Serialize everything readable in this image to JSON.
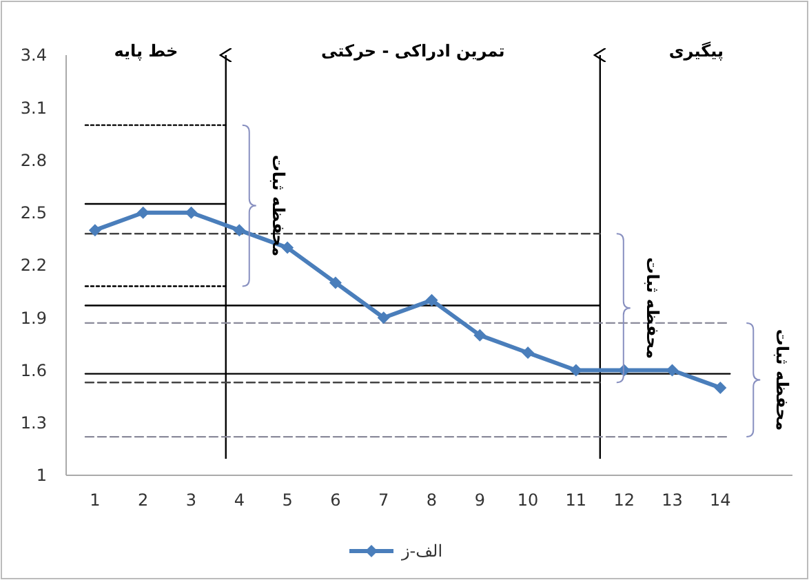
{
  "chart_data": {
    "type": "line",
    "x": [
      1,
      2,
      3,
      4,
      5,
      6,
      7,
      8,
      9,
      10,
      11,
      12,
      13,
      14
    ],
    "xlim": [
      0.4,
      15.5
    ],
    "xticks": [
      1,
      2,
      3,
      4,
      5,
      6,
      7,
      8,
      9,
      10,
      11,
      12,
      13,
      14
    ],
    "ylim": [
      1,
      3.4
    ],
    "yticks": [
      1,
      1.3,
      1.6,
      1.9,
      2.2,
      2.5,
      2.8,
      3.1,
      3.4
    ],
    "grid": false,
    "legend": "bottom",
    "marker": "diamond",
    "series": [
      {
        "name": "الف-ز",
        "color": "#4a7ebb",
        "values": [
          2.4,
          2.5,
          2.5,
          2.4,
          2.3,
          2.1,
          1.9,
          2.0,
          1.8,
          1.7,
          1.6,
          1.6,
          1.6,
          1.5
        ]
      },
      {
        "type": "line",
        "x": [
          0.8,
          3.72
        ],
        "values": [
          3.0,
          3.0
        ],
        "color": "#000000",
        "line_style": "dotted",
        "marker": "none"
      },
      {
        "type": "line",
        "x": [
          0.8,
          3.72
        ],
        "values": [
          2.55,
          2.55
        ],
        "color": "#000000",
        "line_style": "solid",
        "marker": "none"
      },
      {
        "type": "line",
        "x": [
          0.8,
          3.72
        ],
        "values": [
          2.08,
          2.08
        ],
        "color": "#000000",
        "line_style": "dotted",
        "marker": "none"
      },
      {
        "type": "line",
        "x": [
          0.8,
          11.5
        ],
        "values": [
          2.38,
          2.38
        ],
        "color": "#444444",
        "line_style": "dashed",
        "marker": "none"
      },
      {
        "type": "line",
        "x": [
          0.8,
          11.5
        ],
        "values": [
          1.97,
          1.97
        ],
        "color": "#000000",
        "line_style": "solid",
        "marker": "none"
      },
      {
        "type": "line",
        "x": [
          0.8,
          14.2
        ],
        "values": [
          1.87,
          1.87
        ],
        "color": "#8a8a9a",
        "line_style": "dashed",
        "marker": "none"
      },
      {
        "type": "line",
        "x": [
          0.8,
          14.2
        ],
        "values": [
          1.58,
          1.58
        ],
        "color": "#000000",
        "line_style": "solid",
        "marker": "none"
      },
      {
        "type": "line",
        "x": [
          0.8,
          11.5
        ],
        "values": [
          1.53,
          1.53
        ],
        "color": "#444444",
        "line_style": "dashed",
        "marker": "none"
      },
      {
        "type": "line",
        "x": [
          0.8,
          14.2
        ],
        "values": [
          1.22,
          1.22
        ],
        "color": "#8a8a9a",
        "line_style": "dashed",
        "marker": "none"
      }
    ],
    "ref_lines": [
      {
        "axis": "x",
        "value": 3.72,
        "color": "#000000"
      },
      {
        "axis": "x",
        "value": 11.5,
        "color": "#000000"
      }
    ],
    "annotations": [
      "خط پایه",
      "تمرین ادراکی - حرکتی",
      "پیگیری",
      "محفظه ثبات",
      "محفظه ثبات",
      "محفظه ثبات"
    ]
  }
}
